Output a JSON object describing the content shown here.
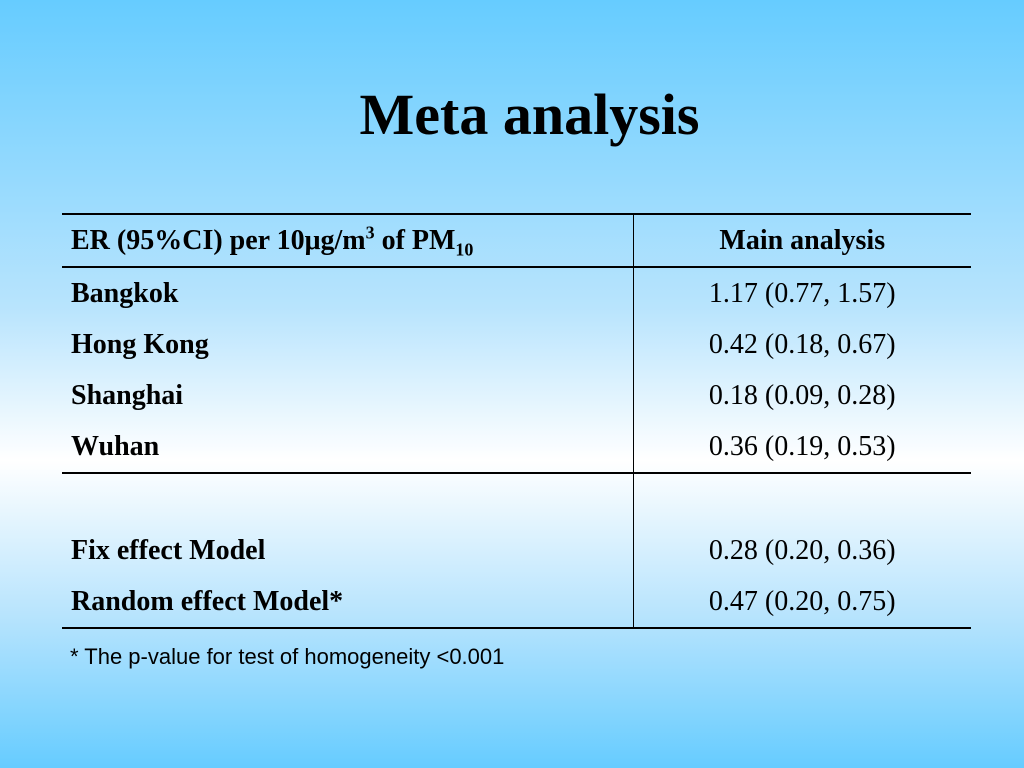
{
  "title": "Meta analysis",
  "table": {
    "header": {
      "col1_prefix": "ER (95%CI) per 10μg/m",
      "col1_sup": "3",
      "col1_mid": " of PM",
      "col1_sub": "10",
      "col2": "Main analysis"
    },
    "cities": [
      {
        "name": "Bangkok",
        "value": "1.17 (0.77, 1.57)"
      },
      {
        "name": "Hong Kong",
        "value": "0.42 (0.18, 0.67)"
      },
      {
        "name": "Shanghai",
        "value": "0.18 (0.09, 0.28)"
      },
      {
        "name": "Wuhan",
        "value": "0.36 (0.19, 0.53)"
      }
    ],
    "models": [
      {
        "name": "Fix effect Model",
        "value": "0.28 (0.20, 0.36)"
      },
      {
        "name": "Random effect Model*",
        "value": "0.47 (0.20, 0.75)"
      }
    ]
  },
  "footnote": "* The p-value for test of homogeneity <0.001"
}
